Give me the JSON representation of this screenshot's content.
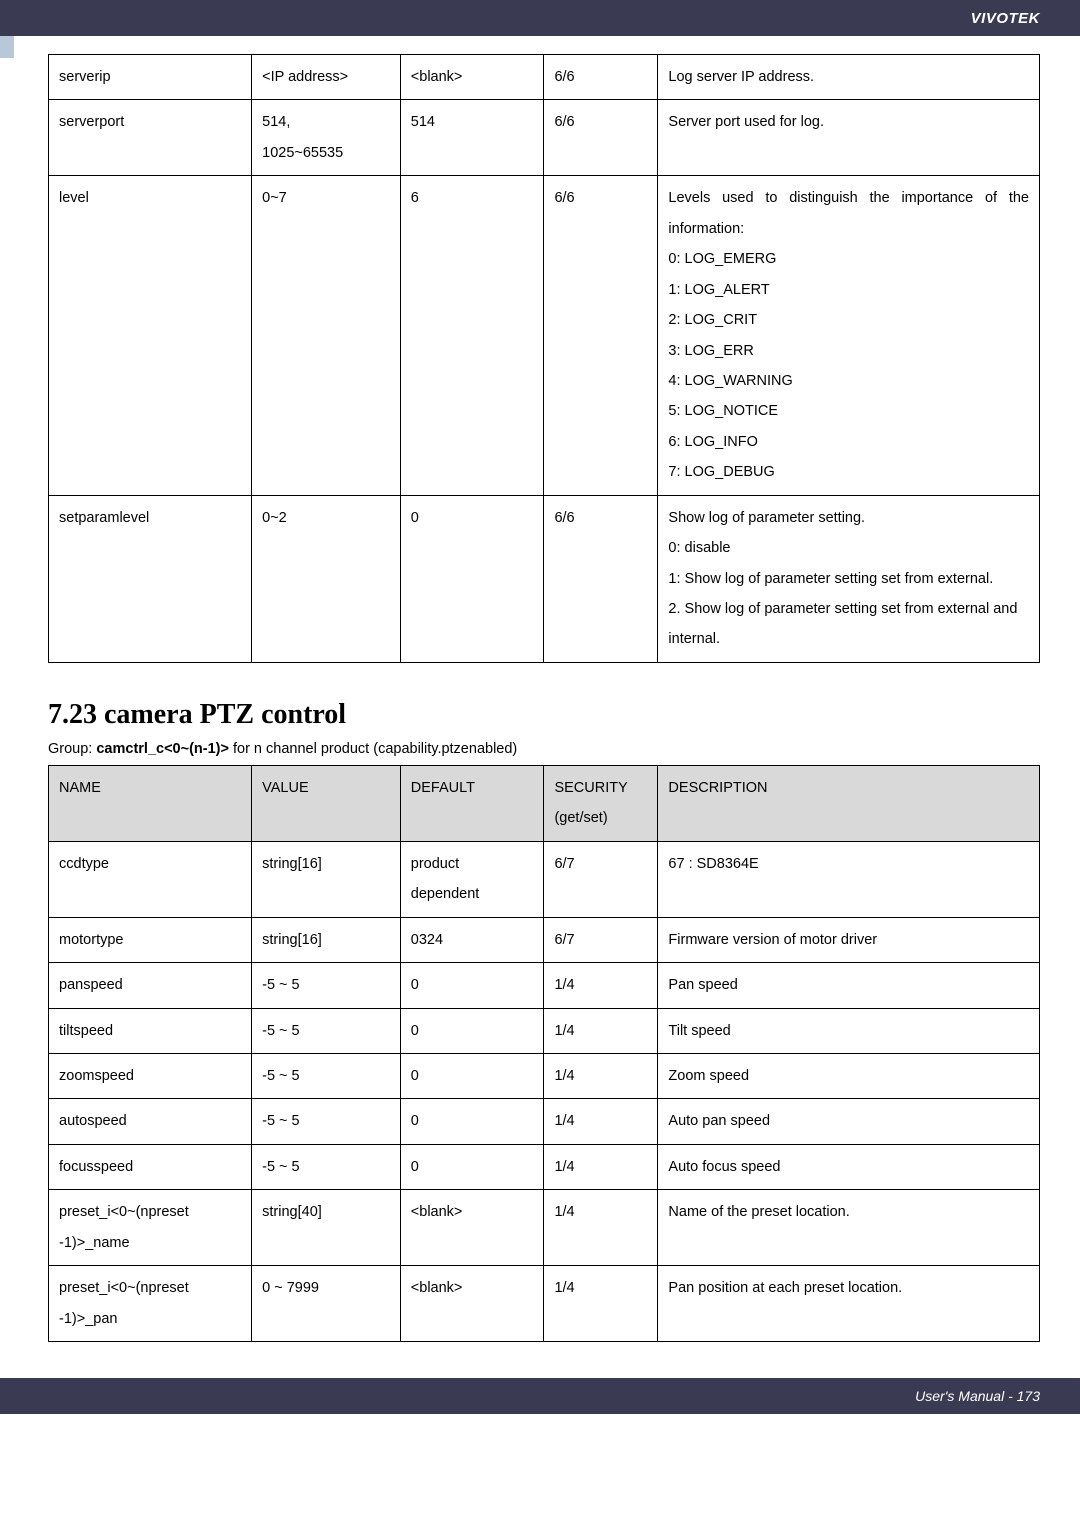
{
  "header": {
    "brand": "VIVOTEK"
  },
  "footer": {
    "text": "User's Manual - 173"
  },
  "table1": {
    "rows": [
      {
        "name": "serverip",
        "value": "<IP address>",
        "default": "<blank>",
        "security": "6/6",
        "desc": [
          "Log server IP address."
        ]
      },
      {
        "name": "serverport",
        "value": "514,\n1025~65535",
        "default": "514",
        "security": "6/6",
        "desc": [
          "Server port used for log."
        ]
      },
      {
        "name": "level",
        "value": "0~7",
        "default": "6",
        "security": "6/6",
        "desc": [
          "Levels used to distinguish the importance of the information:",
          "0: LOG_EMERG",
          "1: LOG_ALERT",
          "2: LOG_CRIT",
          "3: LOG_ERR",
          "4: LOG_WARNING",
          "5: LOG_NOTICE",
          "6: LOG_INFO",
          "7: LOG_DEBUG"
        ],
        "first_just": true
      },
      {
        "name": "setparamlevel",
        "value": "0~2",
        "default": "0",
        "security": "6/6",
        "desc": [
          "Show log of parameter setting.",
          "0: disable",
          "1: Show log of parameter setting set from external.",
          "2. Show log of parameter setting set from external and internal."
        ],
        "first_just": true
      }
    ]
  },
  "section": {
    "heading": "7.23 camera PTZ control",
    "group_prefix": "Group: ",
    "group_bold": "camctrl_c<0~(n-1)>",
    "group_suffix": " for n channel product (capability.ptzenabled)"
  },
  "table2": {
    "headers": {
      "name": "NAME",
      "value": "VALUE",
      "default": "DEFAULT",
      "security": "SECURITY\n(get/set)",
      "desc": "DESCRIPTION"
    },
    "rows": [
      {
        "name": "ccdtype",
        "value": "string[16]",
        "default": "product\ndependent",
        "security": "6/7",
        "desc": "67 : SD8364E"
      },
      {
        "name": "motortype",
        "value": "string[16]",
        "default": "0324",
        "security": "6/7",
        "desc": "Firmware version of motor driver"
      },
      {
        "name": "panspeed",
        "value": "-5 ~ 5",
        "default": "0",
        "security": "1/4",
        "desc": "Pan speed"
      },
      {
        "name": "tiltspeed",
        "value": "-5 ~ 5",
        "default": "0",
        "security": "1/4",
        "desc": "Tilt speed"
      },
      {
        "name": "zoomspeed",
        "value": "-5 ~ 5",
        "default": "0",
        "security": "1/4",
        "desc": "Zoom speed"
      },
      {
        "name": "autospeed",
        "value": "-5 ~ 5",
        "default": "0",
        "security": "1/4",
        "desc": "Auto pan speed"
      },
      {
        "name": "focusspeed",
        "value": "-5 ~ 5",
        "default": "0",
        "security": "1/4",
        "desc": "Auto focus speed"
      },
      {
        "name": "preset_i<0~(npreset\n-1)>_name",
        "value": "string[40]",
        "default": "<blank>",
        "security": "1/4",
        "desc": "Name of the preset location."
      },
      {
        "name": "preset_i<0~(npreset\n-1)>_pan",
        "value": "0 ~ 7999",
        "default": "<blank>",
        "security": "1/4",
        "desc": "Pan position at each preset location.",
        "just": true
      }
    ]
  }
}
